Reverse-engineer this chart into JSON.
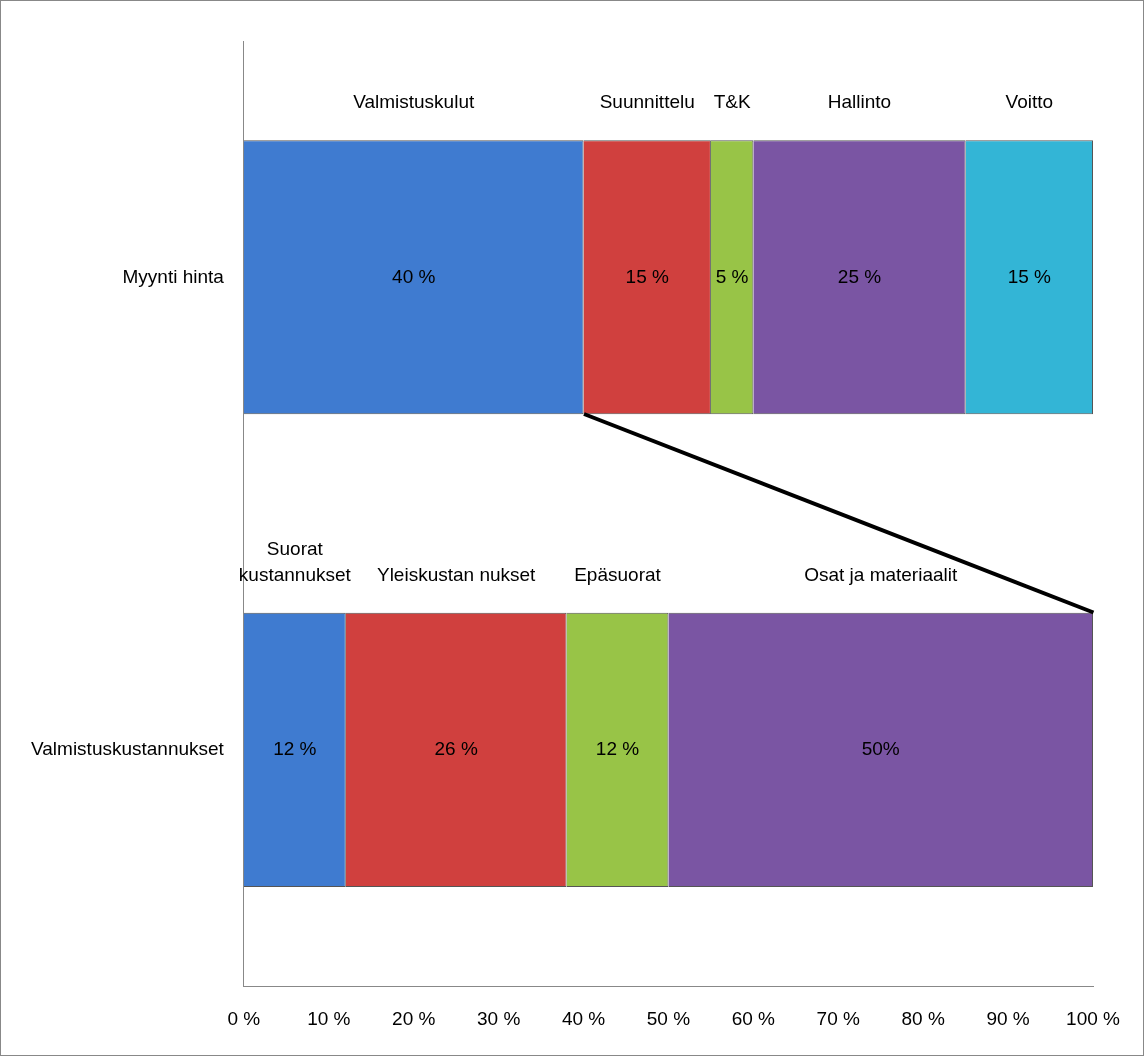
{
  "chart_data": {
    "type": "bar",
    "orientation": "horizontal",
    "stacked": true,
    "categories": [
      "Myynti hinta",
      "Valmistuskustannukset"
    ],
    "series": [
      {
        "color": "#3f7bd0",
        "values": [
          40,
          12
        ],
        "value_labels": [
          "40 %",
          "12 %"
        ]
      },
      {
        "color": "#d0403e",
        "values": [
          15,
          26
        ],
        "value_labels": [
          "15 %",
          "26 %"
        ]
      },
      {
        "color": "#98c447",
        "values": [
          5,
          12
        ],
        "value_labels": [
          "5 %",
          "12 %"
        ]
      },
      {
        "color": "#7a55a3",
        "values": [
          25,
          50
        ],
        "value_labels": [
          "25 %",
          "50%"
        ]
      },
      {
        "color": "#33b5d6",
        "values": [
          15,
          null
        ],
        "value_labels": [
          "15 %",
          null
        ]
      }
    ],
    "xlim": [
      0,
      100
    ],
    "xticks": [
      {
        "value": 0,
        "label": "0 %"
      },
      {
        "value": 10,
        "label": "10 %"
      },
      {
        "value": 20,
        "label": "20 %"
      },
      {
        "value": 30,
        "label": "30 %"
      },
      {
        "value": 40,
        "label": "40 %"
      },
      {
        "value": 50,
        "label": "50 %"
      },
      {
        "value": 60,
        "label": "60 %"
      },
      {
        "value": 70,
        "label": "70 %"
      },
      {
        "value": 80,
        "label": "80 %"
      },
      {
        "value": 90,
        "label": "90 %"
      },
      {
        "value": 100,
        "label": "100 %"
      }
    ],
    "grid": false,
    "legend": false,
    "annotations": [
      "Valmistuskulut",
      "Suunnittelu",
      "T&K",
      "Hallinto",
      "Voitto",
      "Suorat kustannukset",
      "Yleiskustan nukset",
      "Epäsuorat",
      "Osat ja materiaalit"
    ]
  }
}
